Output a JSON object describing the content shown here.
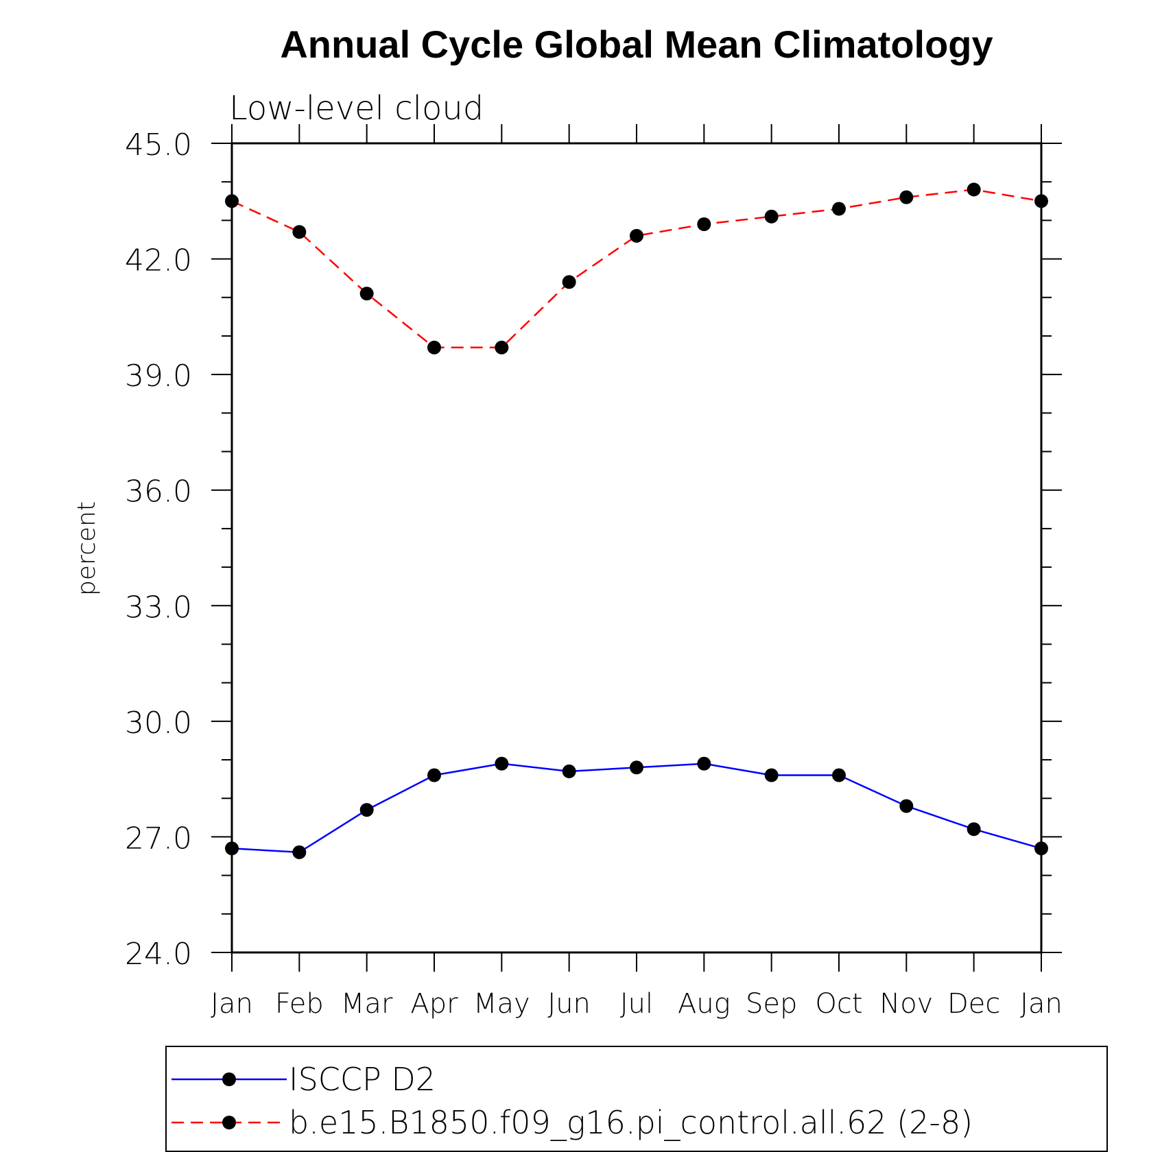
{
  "chart_data": {
    "type": "line",
    "title": "Annual Cycle Global Mean Climatology",
    "subtitle": "Low-level cloud",
    "ylabel": "percent",
    "xlabel": "",
    "ylim": [
      24,
      45
    ],
    "y_major_ticks": [
      24,
      27,
      30,
      33,
      36,
      39,
      42,
      45
    ],
    "y_tick_labels": [
      "24.0",
      "27.0",
      "30.0",
      "33.0",
      "36.0",
      "39.0",
      "42.0",
      "45.0"
    ],
    "y_minor_step": 1,
    "categories": [
      "Jan",
      "Feb",
      "Mar",
      "Apr",
      "May",
      "Jun",
      "Jul",
      "Aug",
      "Sep",
      "Oct",
      "Nov",
      "Dec",
      "Jan"
    ],
    "legend_position": "bottom",
    "series": [
      {
        "name": "ISCCP D2",
        "color": "#0000ff",
        "line_style": "solid",
        "marker": "filled-circle",
        "values": [
          26.7,
          26.6,
          27.7,
          28.6,
          28.9,
          28.7,
          28.8,
          28.9,
          28.6,
          28.6,
          27.8,
          27.2,
          26.7
        ]
      },
      {
        "name": "b.e15.B1850.f09_g16.pi_control.all.62 (2-8)",
        "color": "#ff0000",
        "line_style": "dashed",
        "marker": "filled-circle",
        "values": [
          43.5,
          42.7,
          41.1,
          39.7,
          39.7,
          41.4,
          42.6,
          42.9,
          43.1,
          43.3,
          43.6,
          43.8,
          43.5
        ]
      }
    ]
  }
}
